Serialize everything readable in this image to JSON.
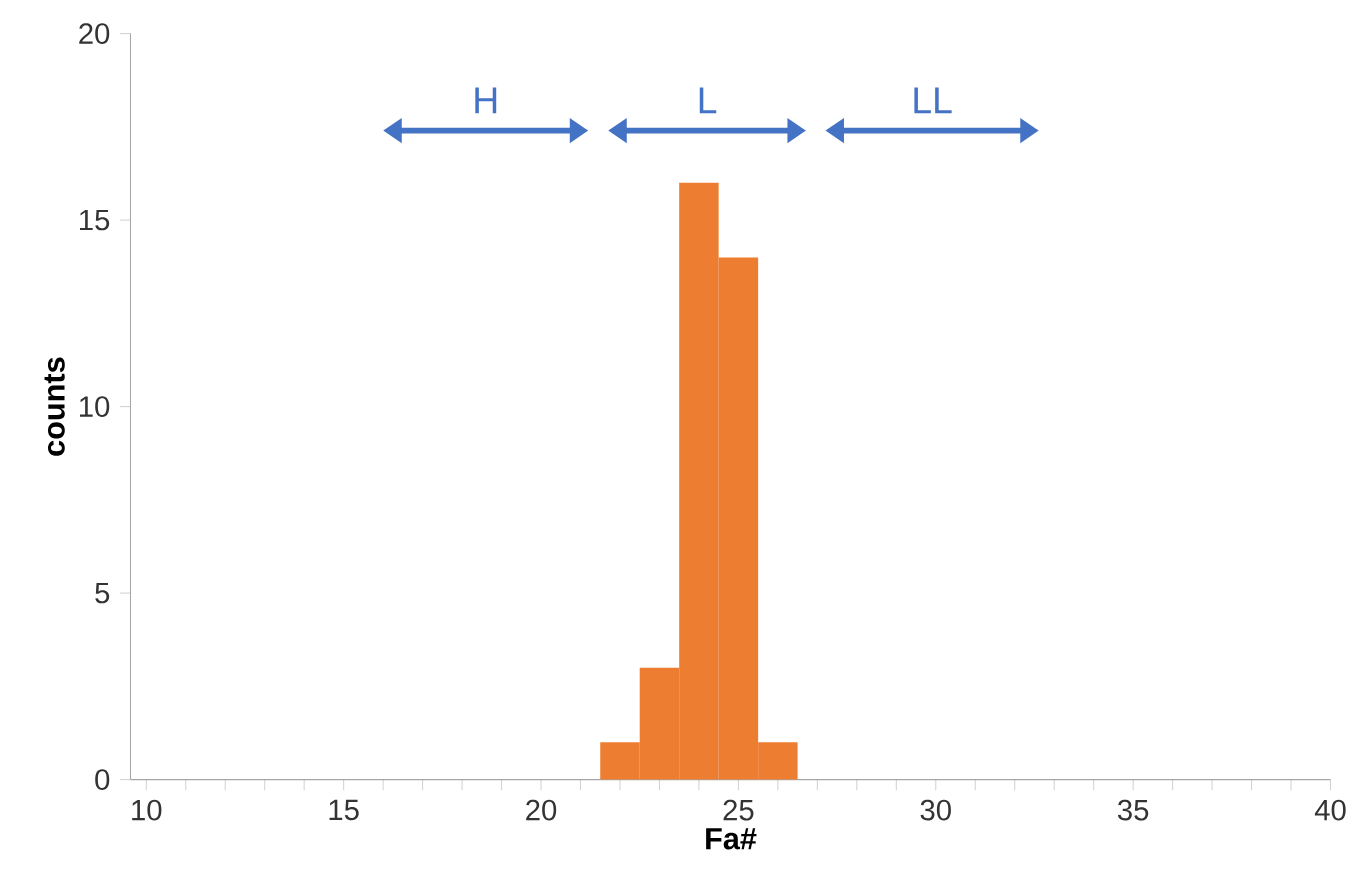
{
  "chart_data": {
    "type": "histogram",
    "xlabel": "Fa#",
    "ylabel": "counts",
    "bins": [
      21.5,
      22.5,
      23.5,
      24.5,
      25.5,
      26.5
    ],
    "values": [
      1,
      3,
      16,
      14,
      1
    ],
    "color": "#ed7d31",
    "xlim": [
      9.6,
      40
    ],
    "ylim": [
      0,
      20
    ],
    "xticks": [
      10,
      {
        "value": 11,
        "label": null
      },
      {
        "value": 12,
        "label": null
      },
      {
        "value": 13,
        "label": null
      },
      {
        "value": 14,
        "label": null
      },
      15,
      {
        "value": 16,
        "label": null
      },
      {
        "value": 17,
        "label": null
      },
      {
        "value": 18,
        "label": null
      },
      {
        "value": 19,
        "label": null
      },
      20,
      {
        "value": 21,
        "label": null
      },
      {
        "value": 22,
        "label": null
      },
      {
        "value": 23,
        "label": null
      },
      {
        "value": 24,
        "label": null
      },
      25,
      {
        "value": 26,
        "label": null
      },
      {
        "value": 27,
        "label": null
      },
      {
        "value": 28,
        "label": null
      },
      {
        "value": 29,
        "label": null
      },
      30,
      {
        "value": 31,
        "label": null
      },
      {
        "value": 32,
        "label": null
      },
      {
        "value": 33,
        "label": null
      },
      {
        "value": 34,
        "label": null
      },
      35,
      {
        "value": 36,
        "label": null
      },
      {
        "value": 37,
        "label": null
      },
      {
        "value": 38,
        "label": null
      },
      {
        "value": 39,
        "label": null
      },
      40
    ],
    "yticks": [
      0,
      5,
      10,
      15,
      20
    ],
    "annotations": [
      "H",
      "L",
      "LL"
    ],
    "grid": false
  }
}
